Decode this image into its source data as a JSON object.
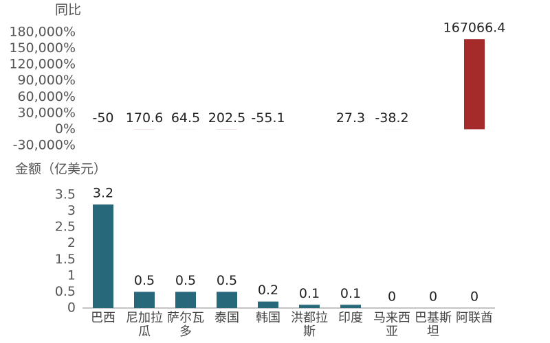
{
  "chart_data": [
    {
      "type": "bar",
      "ylabel": "同比",
      "color": "#a52a2a",
      "values": [
        -50,
        170.6,
        64.5,
        202.5,
        -55.1,
        null,
        27.3,
        -38.2,
        null,
        167066.4
      ],
      "ylim": [
        -30000,
        180000
      ],
      "yticks": [
        {
          "value": -30000,
          "label": "-30,000%"
        },
        {
          "value": 0,
          "label": "0%"
        },
        {
          "value": 30000,
          "label": "30,000%"
        },
        {
          "value": 60000,
          "label": "60,000%"
        },
        {
          "value": 90000,
          "label": "90,000%"
        },
        {
          "value": 120000,
          "label": "120,000%"
        },
        {
          "value": 150000,
          "label": "150,000%"
        },
        {
          "value": 180000,
          "label": "180,000%"
        }
      ]
    },
    {
      "type": "bar",
      "ylabel": "金额（亿美元）",
      "color": "#27687a",
      "categories": [
        "巴西",
        "尼加拉瓜",
        "萨尔瓦多",
        "泰国",
        "韩国",
        "洪都拉斯",
        "印度",
        "马来西亚",
        "巴基斯坦",
        "阿联酋"
      ],
      "values": [
        3.2,
        0.5,
        0.5,
        0.5,
        0.2,
        0.1,
        0.1,
        0,
        0,
        0
      ],
      "ylim": [
        0,
        3.5
      ],
      "yticks": [
        0,
        0.5,
        1,
        1.5,
        2,
        2.5,
        3,
        3.5
      ]
    }
  ]
}
